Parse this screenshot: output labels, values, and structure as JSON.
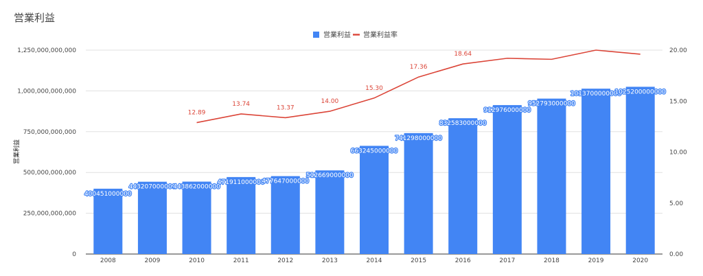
{
  "chart_data": {
    "type": "bar",
    "title": "営業利益",
    "xlabel": "",
    "ylabel": "営業利益",
    "y2label": "",
    "categories": [
      "2008",
      "2009",
      "2010",
      "2011",
      "2012",
      "2013",
      "2014",
      "2015",
      "2016",
      "2017",
      "2018",
      "2019",
      "2020"
    ],
    "series": [
      {
        "name": "営業利益",
        "type": "bar",
        "axis": "left",
        "values": [
          400451000000,
          443207000000,
          443862000000,
          471911000000,
          477647000000,
          512669000000,
          663245000000,
          741298000000,
          832583000000,
          912976000000,
          952793000000,
          1013700000000,
          1025200000000
        ],
        "labels": [
          "400451000000",
          "443207000000",
          "443862000000",
          "471911000000",
          "477647000000",
          "512669000000",
          "663245000000",
          "741298000000",
          "832583000000",
          "912976000000",
          "952793000000",
          "1013700000000",
          "1025200000000"
        ]
      },
      {
        "name": "営業利益率",
        "type": "line",
        "axis": "right",
        "values": [
          null,
          null,
          12.89,
          13.74,
          13.37,
          14.0,
          15.3,
          17.36,
          18.64,
          19.2,
          19.1,
          20.0,
          19.6
        ],
        "labels": [
          null,
          null,
          "12.89",
          "13.74",
          "13.37",
          "14.00",
          "15.30",
          "17.36",
          "18.64",
          null,
          null,
          null,
          null
        ]
      }
    ],
    "ylim": [
      0,
      1250000000000
    ],
    "y_ticks": [
      0,
      250000000000,
      500000000000,
      750000000000,
      1000000000000,
      1250000000000
    ],
    "y_tick_labels": [
      "0",
      "250,000,000,000",
      "500,000,000,000",
      "750,000,000,000",
      "1,000,000,000,000",
      "1,250,000,000,000"
    ],
    "y2lim": [
      0,
      20
    ],
    "y2_ticks": [
      0,
      5,
      10,
      15,
      20
    ],
    "y2_tick_labels": [
      "0.00",
      "5.00",
      "10.00",
      "15.00",
      "20.00"
    ],
    "grid": true,
    "legend_position": "top-center",
    "colors": {
      "bar": "#4285f4",
      "line": "#db4437",
      "grid": "#e0e0e0",
      "axis": "#333333"
    }
  }
}
